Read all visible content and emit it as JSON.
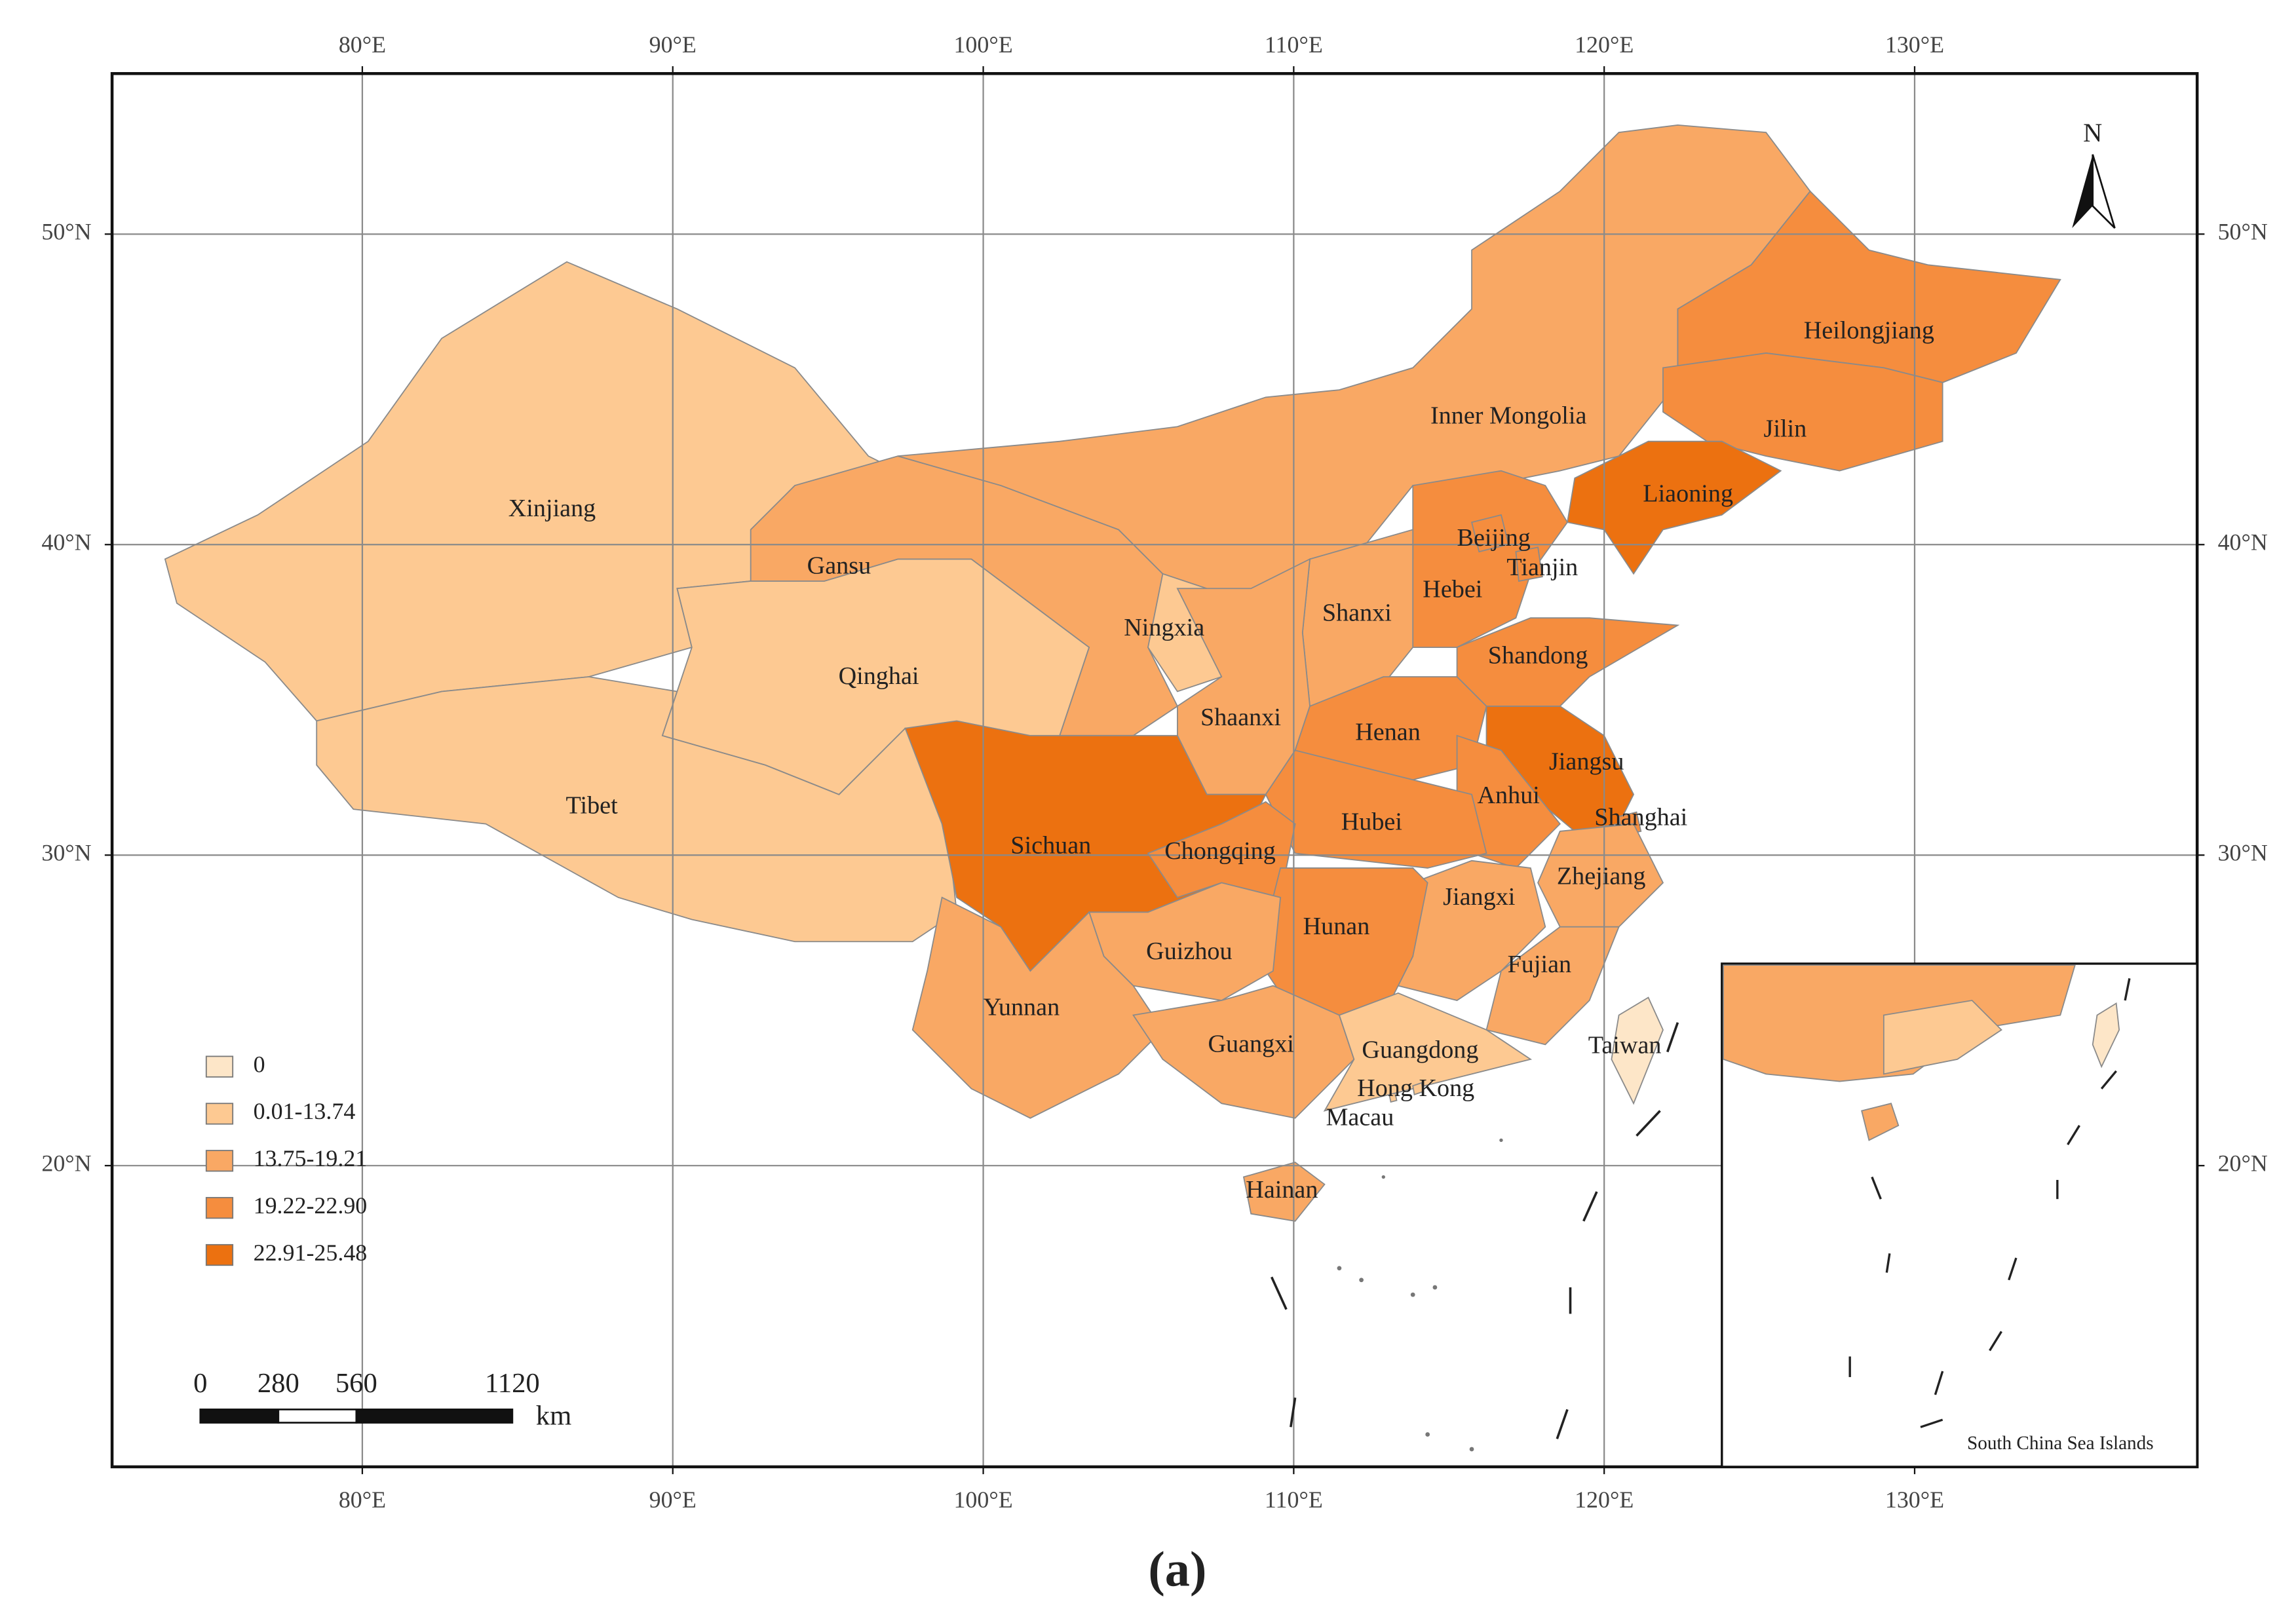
{
  "map": {
    "xlim": [
      71.94,
      139.1
    ],
    "ylim": [
      10.3,
      55.17
    ],
    "xticks": [
      {
        "value": 80,
        "label": "80°E"
      },
      {
        "value": 90,
        "label": "90°E"
      },
      {
        "value": 100,
        "label": "100°E"
      },
      {
        "value": 110,
        "label": "110°E"
      },
      {
        "value": 120,
        "label": "120°E"
      },
      {
        "value": 130,
        "label": "130°E"
      }
    ],
    "yticks": [
      {
        "value": 20,
        "label": "20°N"
      },
      {
        "value": 30,
        "label": "30°N"
      },
      {
        "value": 40,
        "label": "40°N"
      },
      {
        "value": 50,
        "label": "50°N"
      }
    ],
    "grid": true,
    "provinces": [
      {
        "name": "Xinjiang",
        "color": "#fdc992"
      },
      {
        "name": "Tibet",
        "color": "#fdc992"
      },
      {
        "name": "Qinghai",
        "color": "#fdc992"
      },
      {
        "name": "Gansu",
        "color": "#f9a864"
      },
      {
        "name": "Inner Mongolia",
        "color": "#f9a864"
      },
      {
        "name": "Heilongjiang",
        "color": "#f58d3e"
      },
      {
        "name": "Jilin",
        "color": "#f58d3e"
      },
      {
        "name": "Liaoning",
        "color": "#ec7110"
      },
      {
        "name": "Hebei",
        "color": "#f58d3e"
      },
      {
        "name": "Beijing",
        "color": "#f58d3e"
      },
      {
        "name": "Tianjin",
        "color": "#f58d3e"
      },
      {
        "name": "Shanxi",
        "color": "#f9a864"
      },
      {
        "name": "Shandong",
        "color": "#f58d3e"
      },
      {
        "name": "Ningxia",
        "color": "#fdc992"
      },
      {
        "name": "Shaanxi",
        "color": "#f9a864"
      },
      {
        "name": "Henan",
        "color": "#f58d3e"
      },
      {
        "name": "Jiangsu",
        "color": "#ec7110"
      },
      {
        "name": "Anhui",
        "color": "#f58d3e"
      },
      {
        "name": "Shanghai",
        "color": "#f58d3e"
      },
      {
        "name": "Hubei",
        "color": "#f58d3e"
      },
      {
        "name": "Sichuan",
        "color": "#ec7110"
      },
      {
        "name": "Chongqing",
        "color": "#f58d3e"
      },
      {
        "name": "Zhejiang",
        "color": "#f9a864"
      },
      {
        "name": "Jiangxi",
        "color": "#f9a864"
      },
      {
        "name": "Hunan",
        "color": "#f58d3e"
      },
      {
        "name": "Guizhou",
        "color": "#f9a864"
      },
      {
        "name": "Fujian",
        "color": "#f9a864"
      },
      {
        "name": "Yunnan",
        "color": "#f9a864"
      },
      {
        "name": "Guangxi",
        "color": "#f9a864"
      },
      {
        "name": "Guangdong",
        "color": "#fdc992"
      },
      {
        "name": "Taiwan",
        "color": "#fde6c8"
      },
      {
        "name": "Hong Kong",
        "color": "#fdc992"
      },
      {
        "name": "Macau",
        "color": "#fdc992"
      },
      {
        "name": "Hainan",
        "color": "#f9a864"
      }
    ],
    "legend": [
      {
        "label": "0",
        "color": "#fde6c8"
      },
      {
        "label": "0.01-13.74",
        "color": "#fdc992"
      },
      {
        "label": "13.75-19.21",
        "color": "#f9a864"
      },
      {
        "label": "19.22-22.90",
        "color": "#f58d3e"
      },
      {
        "label": "22.91-25.48",
        "color": "#ec7110"
      }
    ],
    "scale_bar": {
      "ticks": [
        0,
        280,
        560,
        1120
      ],
      "unit": "km"
    },
    "north_label": "N",
    "inset_label": "South China Sea Islands",
    "caption": "(a)"
  }
}
